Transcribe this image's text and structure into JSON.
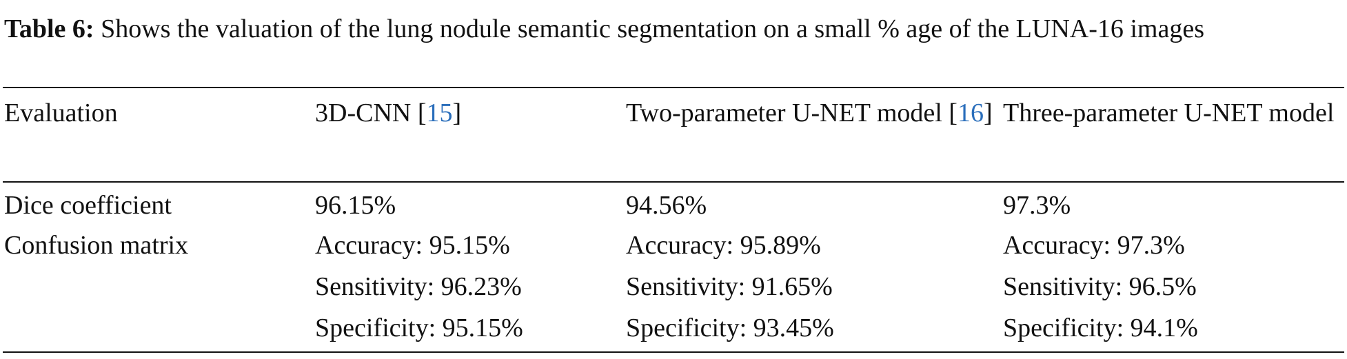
{
  "caption": {
    "label": "Table 6:",
    "text": "Shows the valuation of the lung nodule semantic segmentation on a small % age of the LUNA-16 images"
  },
  "table": {
    "header": [
      {
        "text": "Evaluation"
      },
      {
        "before": "3D-CNN [",
        "ref": "15",
        "after": "]"
      },
      {
        "before": "Two-parameter U-NET model [",
        "ref": "16",
        "after": "]"
      },
      {
        "text": "Three-parameter U-NET model"
      }
    ],
    "rows": [
      {
        "label": "Dice coefficient",
        "cells": [
          [
            "96.15%"
          ],
          [
            "94.56%"
          ],
          [
            "97.3%"
          ]
        ]
      },
      {
        "label": "Confusion matrix",
        "cells": [
          [
            "Accuracy: 95.15%",
            "Sensitivity: 96.23%",
            "Specificity: 95.15%"
          ],
          [
            "Accuracy: 95.89%",
            "Sensitivity: 91.65%",
            "Specificity: 93.45%"
          ],
          [
            "Accuracy: 97.3%",
            "Sensitivity: 96.5%",
            "Specificity: 94.1%"
          ]
        ]
      }
    ]
  }
}
